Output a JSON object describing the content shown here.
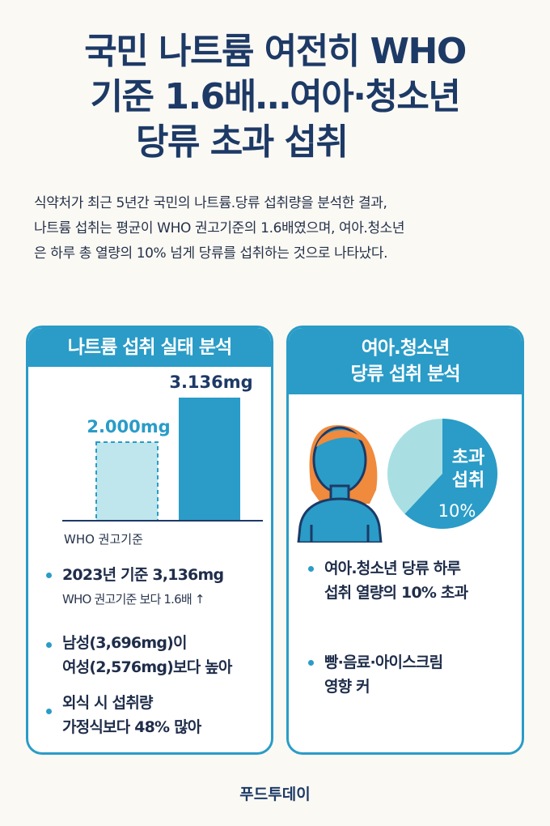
{
  "title": {
    "line1": "국민 나트륨 여전히 WHO",
    "line2": "기준 1.6배…여아·청소년",
    "line3": "당류 초과 섭취"
  },
  "intro": {
    "line1": "식약처가 최근 5년간 국민의 나트륨.당류 섭취량을 분석한 결과,",
    "line2": "나트륨 섭취는 평균이 WHO 권고기준의 1.6배였으며, 여아.청소년",
    "line3": "은 하루 총 열량의 10% 넘게 당류를 섭취하는 것으로 나타났다."
  },
  "sodium_card": {
    "header": "나트륨 섭취 실태 분석",
    "chart_data": {
      "type": "bar",
      "categories": [
        "WHO 권고기준",
        ""
      ],
      "values": [
        2000,
        3136
      ],
      "value_labels": [
        "2.000mg",
        "3.136mg"
      ],
      "xlabel": "WHO 권고기준",
      "colors": [
        "#bfe6ec",
        "#2a9cc7"
      ]
    },
    "bullets": [
      {
        "line1": "2023년 기준 3,136mg",
        "sub": "WHO 권고기준 보다 1.6배 ↑"
      },
      {
        "line1": "남성(3,696mg)이",
        "line2": "여성(2,576mg)보다 높아"
      },
      {
        "line1": "외식 시 섭취량",
        "line2": "가정식보다 48% 많아"
      }
    ]
  },
  "sugar_card": {
    "header_line1": "여아.청소년",
    "header_line2": "당류 섭취 분석",
    "pie": {
      "label_line1": "초과",
      "label_line2": "섭취",
      "percent": "10%",
      "value": 0.62,
      "colors": {
        "main": "#2a9cc7",
        "rest": "#a9dfe3"
      }
    },
    "bullets": [
      {
        "line1": "여아.청소년 당류 하루",
        "line2": "섭취 열량의 10% 초과"
      },
      {
        "line1": "빵·음료·아이스크림",
        "line2": "영향 커"
      }
    ]
  },
  "footer": "푸드투데이"
}
